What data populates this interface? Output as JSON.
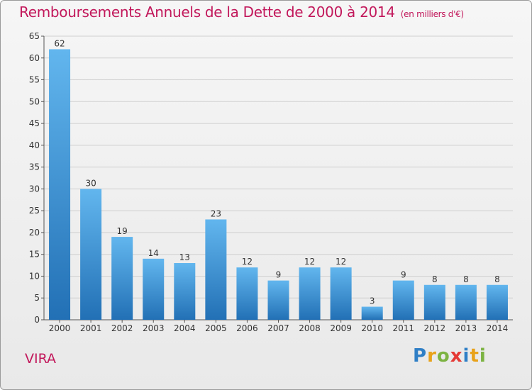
{
  "header": {
    "title": "Remboursements Annuels de la Dette de 2000 à 2014",
    "subtitle": "(en milliers d'€)"
  },
  "footer": {
    "place": "VIRA",
    "logo_letters": [
      "P",
      "r",
      "o",
      "x",
      "i",
      "t",
      "i"
    ],
    "logo_colors": [
      "#2f7fc6",
      "#e8a21a",
      "#7cb342",
      "#e53935",
      "#2f7fc6",
      "#e8a21a",
      "#7cb342"
    ]
  },
  "colors": {
    "bar_top": "#62b6ee",
    "bar_bottom": "#2270b5",
    "title": "#c2185b",
    "grid": "#cfcfcf"
  },
  "chart_data": {
    "type": "bar",
    "categories": [
      "2000",
      "2001",
      "2002",
      "2003",
      "2004",
      "2005",
      "2006",
      "2007",
      "2008",
      "2009",
      "2010",
      "2011",
      "2012",
      "2013",
      "2014"
    ],
    "values": [
      62,
      30,
      19,
      14,
      13,
      23,
      12,
      9,
      12,
      12,
      3,
      9,
      8,
      8,
      8
    ],
    "ylim": [
      0,
      65
    ],
    "yticks": [
      0,
      5,
      10,
      15,
      20,
      25,
      30,
      35,
      40,
      45,
      50,
      55,
      60,
      65
    ],
    "grid": true,
    "data_labels": true,
    "xlabel": "",
    "ylabel": ""
  }
}
